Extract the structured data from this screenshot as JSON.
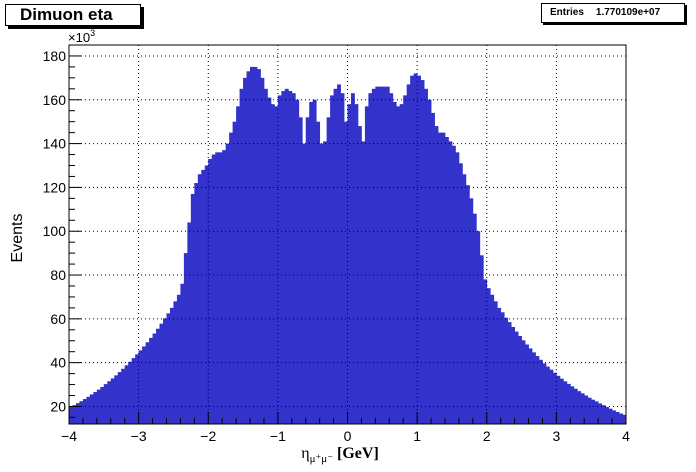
{
  "chart_data": {
    "type": "bar",
    "title": "Dimuon eta",
    "stats": {
      "label": "Entries",
      "value": "1.770109e+07"
    },
    "xlabel_main": "η",
    "xlabel_sub": "μ⁺μ⁻",
    "xlabel_unit": "[GeV]",
    "ylabel": "Events",
    "y_multiplier": "×10",
    "y_multiplier_exp": "3",
    "xlim": [
      -4,
      4
    ],
    "ylim": [
      12,
      185
    ],
    "grid": true,
    "bar_color": "#3333cc",
    "xticks": [
      "−4",
      "−3",
      "−2",
      "−1",
      "0",
      "1",
      "2",
      "3",
      "4"
    ],
    "yticks": [
      "20",
      "40",
      "60",
      "80",
      "100",
      "120",
      "140",
      "160",
      "180"
    ],
    "x": [
      -3.975,
      -3.925,
      -3.875,
      -3.825,
      -3.775,
      -3.725,
      -3.675,
      -3.625,
      -3.575,
      -3.525,
      -3.475,
      -3.425,
      -3.375,
      -3.325,
      -3.275,
      -3.225,
      -3.175,
      -3.125,
      -3.075,
      -3.025,
      -2.975,
      -2.925,
      -2.875,
      -2.825,
      -2.775,
      -2.725,
      -2.675,
      -2.625,
      -2.575,
      -2.525,
      -2.475,
      -2.425,
      -2.375,
      -2.325,
      -2.275,
      -2.225,
      -2.175,
      -2.125,
      -2.075,
      -2.025,
      -1.975,
      -1.925,
      -1.875,
      -1.825,
      -1.775,
      -1.725,
      -1.675,
      -1.625,
      -1.575,
      -1.525,
      -1.475,
      -1.425,
      -1.375,
      -1.325,
      -1.275,
      -1.225,
      -1.175,
      -1.125,
      -1.075,
      -1.025,
      -0.975,
      -0.925,
      -0.875,
      -0.825,
      -0.775,
      -0.725,
      -0.675,
      -0.625,
      -0.575,
      -0.525,
      -0.475,
      -0.425,
      -0.375,
      -0.325,
      -0.275,
      -0.225,
      -0.175,
      -0.125,
      -0.075,
      -0.025,
      0.025,
      0.075,
      0.125,
      0.175,
      0.225,
      0.275,
      0.325,
      0.375,
      0.425,
      0.475,
      0.525,
      0.575,
      0.625,
      0.675,
      0.725,
      0.775,
      0.825,
      0.875,
      0.925,
      0.975,
      1.025,
      1.075,
      1.125,
      1.175,
      1.225,
      1.275,
      1.325,
      1.375,
      1.425,
      1.475,
      1.525,
      1.575,
      1.625,
      1.675,
      1.725,
      1.775,
      1.825,
      1.875,
      1.925,
      1.975,
      2.025,
      2.075,
      2.125,
      2.175,
      2.225,
      2.275,
      2.325,
      2.375,
      2.425,
      2.475,
      2.525,
      2.575,
      2.625,
      2.675,
      2.725,
      2.775,
      2.825,
      2.875,
      2.925,
      2.975,
      3.025,
      3.075,
      3.125,
      3.175,
      3.225,
      3.275,
      3.325,
      3.375,
      3.425,
      3.475,
      3.525,
      3.575,
      3.625,
      3.675,
      3.725,
      3.775,
      3.825,
      3.875,
      3.925,
      3.975
    ],
    "values": [
      19.8,
      20.6,
      21.5,
      22.4,
      23.4,
      24.4,
      25.5,
      26.6,
      27.7,
      28.9,
      30.2,
      31.5,
      32.8,
      34.2,
      35.7,
      37.2,
      38.8,
      40.4,
      42.1,
      43.8,
      45.6,
      47.4,
      49.3,
      51.3,
      53.3,
      55.5,
      57.8,
      60.2,
      62.5,
      65.0,
      68.0,
      71.0,
      76.0,
      90.0,
      104.0,
      117.0,
      122.0,
      126.0,
      128.0,
      130.0,
      133.0,
      135.0,
      136.0,
      136.0,
      137.0,
      140.0,
      145.0,
      150.0,
      157.0,
      165.0,
      170.0,
      173.0,
      175.0,
      175.0,
      174.0,
      170.0,
      165.0,
      161.0,
      158.0,
      157.0,
      162.0,
      164.0,
      165.0,
      164.0,
      163.0,
      160.0,
      152.0,
      140.0,
      152.0,
      159.0,
      160.0,
      150.0,
      140.0,
      141.0,
      152.0,
      162.0,
      165.0,
      167.0,
      163.0,
      150.0,
      158.0,
      163.0,
      158.0,
      148.0,
      141.0,
      157.0,
      163.0,
      165.0,
      166.0,
      166.0,
      166.0,
      166.0,
      163.0,
      159.0,
      157.0,
      158.0,
      162.0,
      167.0,
      171.0,
      172.0,
      171.0,
      169.0,
      165.0,
      160.0,
      154.0,
      148.0,
      145.0,
      145.0,
      143.0,
      141.0,
      139.0,
      136.0,
      131.0,
      126.0,
      121.0,
      115.0,
      108.0,
      100.0,
      89.0,
      78.0,
      74.0,
      71.0,
      68.0,
      65.0,
      63.0,
      60.5,
      58.5,
      56.3,
      54.2,
      52.2,
      50.2,
      48.3,
      46.5,
      44.7,
      43.0,
      41.3,
      39.7,
      38.2,
      36.8,
      35.4,
      34.0,
      32.7,
      31.5,
      30.3,
      29.2,
      28.1,
      27.0,
      26.0,
      25.0,
      24.0,
      23.1,
      22.3,
      21.4,
      20.6,
      19.8,
      19.0,
      18.2,
      17.5,
      16.8,
      16.2
    ]
  }
}
